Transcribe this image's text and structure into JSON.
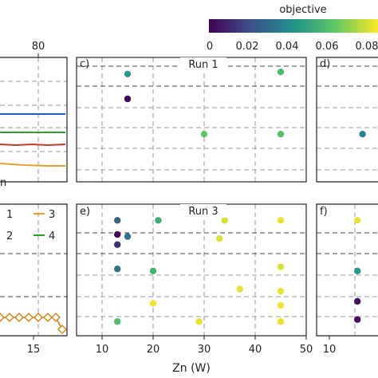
{
  "colorbar": {
    "label": "objective",
    "ticks": [
      "0",
      "0.02",
      "0.04",
      "0.06",
      "0.08"
    ],
    "range": [
      0,
      0.085
    ],
    "colors": [
      "#440154",
      "#3b528b",
      "#21918c",
      "#5ec962",
      "#fde725"
    ]
  },
  "left_top": {
    "top_tick": "80",
    "partial_text": "n",
    "lines": [
      {
        "color": "#1f5fbf"
      },
      {
        "color": "#2ca02c"
      },
      {
        "color": "#c0392b"
      },
      {
        "color": "#e8a030"
      }
    ]
  },
  "left_bottom": {
    "legend": [
      {
        "label": "1",
        "color": "#1f5fbf"
      },
      {
        "label": "3",
        "color": "#e8a030"
      },
      {
        "label": "2",
        "color": "#c0392b"
      },
      {
        "label": "4",
        "color": "#2ca02c"
      }
    ],
    "x_tick": "15",
    "marker_series": {
      "color": "#d98b1a"
    }
  },
  "panel_c": {
    "label": "c)",
    "title": "Run 1"
  },
  "panel_d": {
    "label": "d)"
  },
  "panel_e": {
    "label": "e)",
    "title": "Run 3"
  },
  "panel_f": {
    "label": "f)"
  },
  "xaxis": {
    "label": "Zn (W)",
    "ticks": [
      "10",
      "20",
      "30",
      "40",
      "50"
    ],
    "range": [
      5,
      50
    ]
  },
  "right_x_tick": "10",
  "chart_data": {
    "type": "scatter",
    "xlabel": "Zn (W)",
    "xlim": [
      5,
      50
    ],
    "colorbar_label": "objective",
    "colorbar_range": [
      0,
      0.085
    ],
    "panels": [
      {
        "panel": "c)",
        "title": "Run 1",
        "points": [
          {
            "x": 15,
            "y": 5.2,
            "objective": 0.045
          },
          {
            "x": 45,
            "y": 5.3,
            "objective": 0.058
          },
          {
            "x": 15,
            "y": 4.0,
            "objective": 0.002
          },
          {
            "x": 30,
            "y": 2.3,
            "objective": 0.064
          },
          {
            "x": 45,
            "y": 2.3,
            "objective": 0.06
          }
        ]
      },
      {
        "panel": "d)",
        "points": [
          {
            "x": 14,
            "y": 2.3,
            "objective": 0.038
          }
        ]
      },
      {
        "panel": "e)",
        "title": "Run 3",
        "points": [
          {
            "x": 13,
            "y": 7.2,
            "objective": 0.028
          },
          {
            "x": 21,
            "y": 7.2,
            "objective": 0.052
          },
          {
            "x": 34,
            "y": 7.2,
            "objective": 0.08
          },
          {
            "x": 45,
            "y": 7.2,
            "objective": 0.082
          },
          {
            "x": 13,
            "y": 6.5,
            "objective": 0.001
          },
          {
            "x": 15,
            "y": 6.4,
            "objective": 0.032
          },
          {
            "x": 33,
            "y": 6.3,
            "objective": 0.081
          },
          {
            "x": 13,
            "y": 6.0,
            "objective": 0.012
          },
          {
            "x": 13,
            "y": 4.8,
            "objective": 0.032
          },
          {
            "x": 20,
            "y": 4.7,
            "objective": 0.056
          },
          {
            "x": 45,
            "y": 4.9,
            "objective": 0.08
          },
          {
            "x": 37,
            "y": 3.8,
            "objective": 0.082
          },
          {
            "x": 45,
            "y": 3.7,
            "objective": 0.083
          },
          {
            "x": 20,
            "y": 3.1,
            "objective": 0.083
          },
          {
            "x": 45,
            "y": 3.0,
            "objective": 0.083
          },
          {
            "x": 13,
            "y": 2.2,
            "objective": 0.06
          },
          {
            "x": 29,
            "y": 2.2,
            "objective": 0.082
          },
          {
            "x": 45,
            "y": 2.2,
            "objective": 0.083
          }
        ]
      },
      {
        "panel": "f)",
        "points": [
          {
            "x": 13,
            "y": 7.2,
            "objective": 0.082
          },
          {
            "x": 13,
            "y": 4.7,
            "objective": 0.045
          },
          {
            "x": 13,
            "y": 3.2,
            "objective": 0.004
          },
          {
            "x": 13,
            "y": 2.3,
            "objective": 0.003
          }
        ]
      }
    ]
  }
}
